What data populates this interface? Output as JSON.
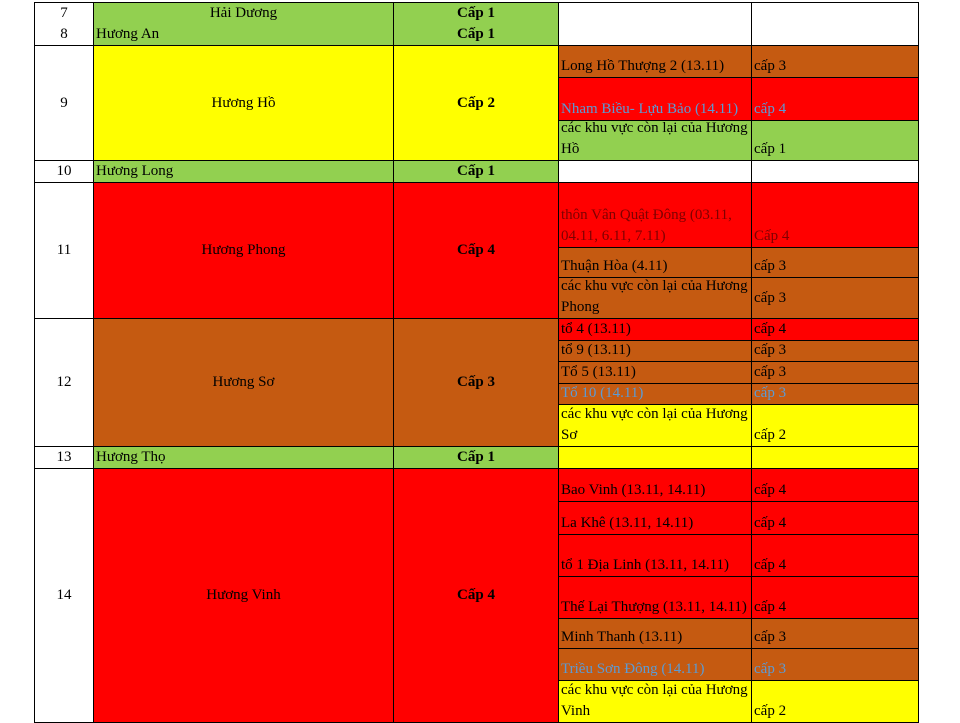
{
  "colors": {
    "green": "#92d050",
    "yellow": "#ffff00",
    "red": "#ff0000",
    "brown": "#c55a11",
    "white": "#ffffff",
    "blue_text": "#5b9bd5",
    "darkred_text": "#7f0000"
  },
  "rows": [
    {
      "no": "7",
      "name": "Hải Dương",
      "level": "Cấp 1",
      "no2": "8",
      "name2": "Hương An",
      "level2": "Cấp 1",
      "color": "green",
      "subs": [
        {
          "area": "",
          "level": "",
          "color": "white"
        }
      ]
    },
    {
      "no": "9",
      "name": "Hương Hồ",
      "level": "Cấp 2",
      "color": "yellow",
      "subs": [
        {
          "area": "Long Hồ Thượng  2 (13.11)",
          "level": "cấp 3",
          "color": "brown"
        },
        {
          "area": "Nham Biều- Lựu Bảo (14.11)",
          "level": "cấp 4",
          "color": "red",
          "text": "blue_text"
        },
        {
          "area": "các khu vực còn lại của Hương Hồ",
          "level": "cấp 1",
          "color": "green"
        }
      ]
    },
    {
      "no": "10",
      "name": "Hương Long",
      "level": "Cấp 1",
      "color": "green",
      "left": true,
      "subs": [
        {
          "area": "",
          "level": "",
          "color": "white"
        }
      ]
    },
    {
      "no": "11",
      "name": "Hương Phong",
      "level": "Cấp 4",
      "color": "red",
      "subs": [
        {
          "area": "thôn Vân Quật Đông (03.11, 04.11, 6.11, 7.11)",
          "level": "Cấp 4",
          "color": "red",
          "text": "darkred_text"
        },
        {
          "area": "Thuận Hòa (4.11)",
          "level": "cấp 3",
          "color": "brown"
        },
        {
          "area": "các khu vực còn lại của Hương Phong",
          "level": "cấp 3",
          "color": "brown",
          "mid": true
        }
      ]
    },
    {
      "no": "12",
      "name": "Hương Sơ",
      "level": "Cấp 3",
      "color": "brown",
      "subs": [
        {
          "area": "tổ 4 (13.11)",
          "level": "cấp 4",
          "color": "red"
        },
        {
          "area": "tổ 9 (13.11)",
          "level": "cấp 3",
          "color": "brown"
        },
        {
          "area": "Tổ 5 (13.11)",
          "level": "cấp 3",
          "color": "brown"
        },
        {
          "area": "Tổ 10 (14.11)",
          "level": "cấp 3",
          "color": "brown",
          "text": "blue_text"
        },
        {
          "area": "các khu vực còn lại của Hương Sơ",
          "level": "cấp 2",
          "color": "yellow"
        }
      ]
    },
    {
      "no": "13",
      "name": "Hương Thọ",
      "level": "Cấp 1",
      "color": "green",
      "left": true,
      "subs": [
        {
          "area": "",
          "level": "",
          "color": "yellow"
        }
      ]
    },
    {
      "no": "14",
      "name": "Hương Vinh",
      "level": "Cấp 4",
      "color": "red",
      "subs": [
        {
          "area": "Bao Vinh (13.11, 14.11)",
          "level": "cấp 4",
          "color": "red"
        },
        {
          "area": "La Khê (13.11, 14.11)",
          "level": "cấp 4",
          "color": "red"
        },
        {
          "area": "tổ 1 Địa Linh (13.11, 14.11)",
          "level": "cấp 4",
          "color": "red"
        },
        {
          "area": "Thế Lại Thượng (13.11, 14.11)",
          "level": "cấp 4",
          "color": "red"
        },
        {
          "area": "Minh Thanh (13.11)",
          "level": "cấp 3",
          "color": "brown"
        },
        {
          "area": "Triều Sơn Đông (14.11)",
          "level": "cấp 3",
          "color": "brown",
          "text": "blue_text"
        },
        {
          "area": "các khu vực còn lại của Hương Vinh",
          "level": "cấp 2",
          "color": "yellow"
        }
      ]
    }
  ]
}
